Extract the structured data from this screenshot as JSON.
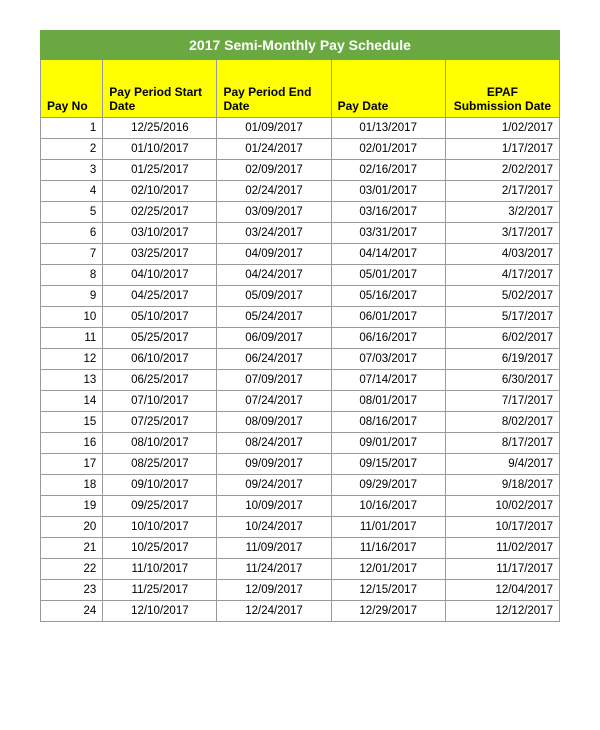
{
  "table": {
    "type": "table",
    "title": "2017 Semi-Monthly Pay Schedule",
    "title_bg": "#6aa842",
    "title_color": "#ffffff",
    "header_bg": "#ffff00",
    "header_color": "#000000",
    "border_color": "#999999",
    "columns": [
      {
        "label": "Pay No",
        "align": "left",
        "width": "12%"
      },
      {
        "label": "Pay Period Start Date",
        "align": "left",
        "width": "22%"
      },
      {
        "label": "Pay Period End Date",
        "align": "left",
        "width": "22%"
      },
      {
        "label": "Pay Date",
        "align": "left",
        "width": "22%"
      },
      {
        "label": "EPAF Submission Date",
        "align": "center",
        "width": "22%"
      }
    ],
    "rows": [
      {
        "no": "1",
        "start": "12/25/2016",
        "end": "01/09/2017",
        "pay": "01/13/2017",
        "epaf": "1/02/2017"
      },
      {
        "no": "2",
        "start": "01/10/2017",
        "end": "01/24/2017",
        "pay": "02/01/2017",
        "epaf": "1/17/2017"
      },
      {
        "no": "3",
        "start": "01/25/2017",
        "end": "02/09/2017",
        "pay": "02/16/2017",
        "epaf": "2/02/2017"
      },
      {
        "no": "4",
        "start": "02/10/2017",
        "end": "02/24/2017",
        "pay": "03/01/2017",
        "epaf": "2/17/2017"
      },
      {
        "no": "5",
        "start": "02/25/2017",
        "end": "03/09/2017",
        "pay": "03/16/2017",
        "epaf": "3/2/2017"
      },
      {
        "no": "6",
        "start": "03/10/2017",
        "end": "03/24/2017",
        "pay": "03/31/2017",
        "epaf": "3/17/2017"
      },
      {
        "no": "7",
        "start": "03/25/2017",
        "end": "04/09/2017",
        "pay": "04/14/2017",
        "epaf": "4/03/2017"
      },
      {
        "no": "8",
        "start": "04/10/2017",
        "end": "04/24/2017",
        "pay": "05/01/2017",
        "epaf": "4/17/2017"
      },
      {
        "no": "9",
        "start": "04/25/2017",
        "end": "05/09/2017",
        "pay": "05/16/2017",
        "epaf": "5/02/2017"
      },
      {
        "no": "10",
        "start": "05/10/2017",
        "end": "05/24/2017",
        "pay": "06/01/2017",
        "epaf": "5/17/2017"
      },
      {
        "no": "11",
        "start": "05/25/2017",
        "end": "06/09/2017",
        "pay": "06/16/2017",
        "epaf": "6/02/2017"
      },
      {
        "no": "12",
        "start": "06/10/2017",
        "end": "06/24/2017",
        "pay": "07/03/2017",
        "epaf": "6/19/2017"
      },
      {
        "no": "13",
        "start": "06/25/2017",
        "end": "07/09/2017",
        "pay": "07/14/2017",
        "epaf": "6/30/2017"
      },
      {
        "no": "14",
        "start": "07/10/2017",
        "end": "07/24/2017",
        "pay": "08/01/2017",
        "epaf": "7/17/2017"
      },
      {
        "no": "15",
        "start": "07/25/2017",
        "end": "08/09/2017",
        "pay": "08/16/2017",
        "epaf": "8/02/2017"
      },
      {
        "no": "16",
        "start": "08/10/2017",
        "end": "08/24/2017",
        "pay": "09/01/2017",
        "epaf": "8/17/2017"
      },
      {
        "no": "17",
        "start": "08/25/2017",
        "end": "09/09/2017",
        "pay": "09/15/2017",
        "epaf": "9/4/2017"
      },
      {
        "no": "18",
        "start": "09/10/2017",
        "end": "09/24/2017",
        "pay": "09/29/2017",
        "epaf": "9/18/2017"
      },
      {
        "no": "19",
        "start": "09/25/2017",
        "end": "10/09/2017",
        "pay": "10/16/2017",
        "epaf": "10/02/2017"
      },
      {
        "no": "20",
        "start": "10/10/2017",
        "end": "10/24/2017",
        "pay": "11/01/2017",
        "epaf": "10/17/2017"
      },
      {
        "no": "21",
        "start": "10/25/2017",
        "end": "11/09/2017",
        "pay": "11/16/2017",
        "epaf": "11/02/2017"
      },
      {
        "no": "22",
        "start": "11/10/2017",
        "end": "11/24/2017",
        "pay": "12/01/2017",
        "epaf": "11/17/2017"
      },
      {
        "no": "23",
        "start": "11/25/2017",
        "end": "12/09/2017",
        "pay": "12/15/2017",
        "epaf": "12/04/2017"
      },
      {
        "no": "24",
        "start": "12/10/2017",
        "end": "12/24/2017",
        "pay": "12/29/2017",
        "epaf": "12/12/2017"
      }
    ]
  }
}
